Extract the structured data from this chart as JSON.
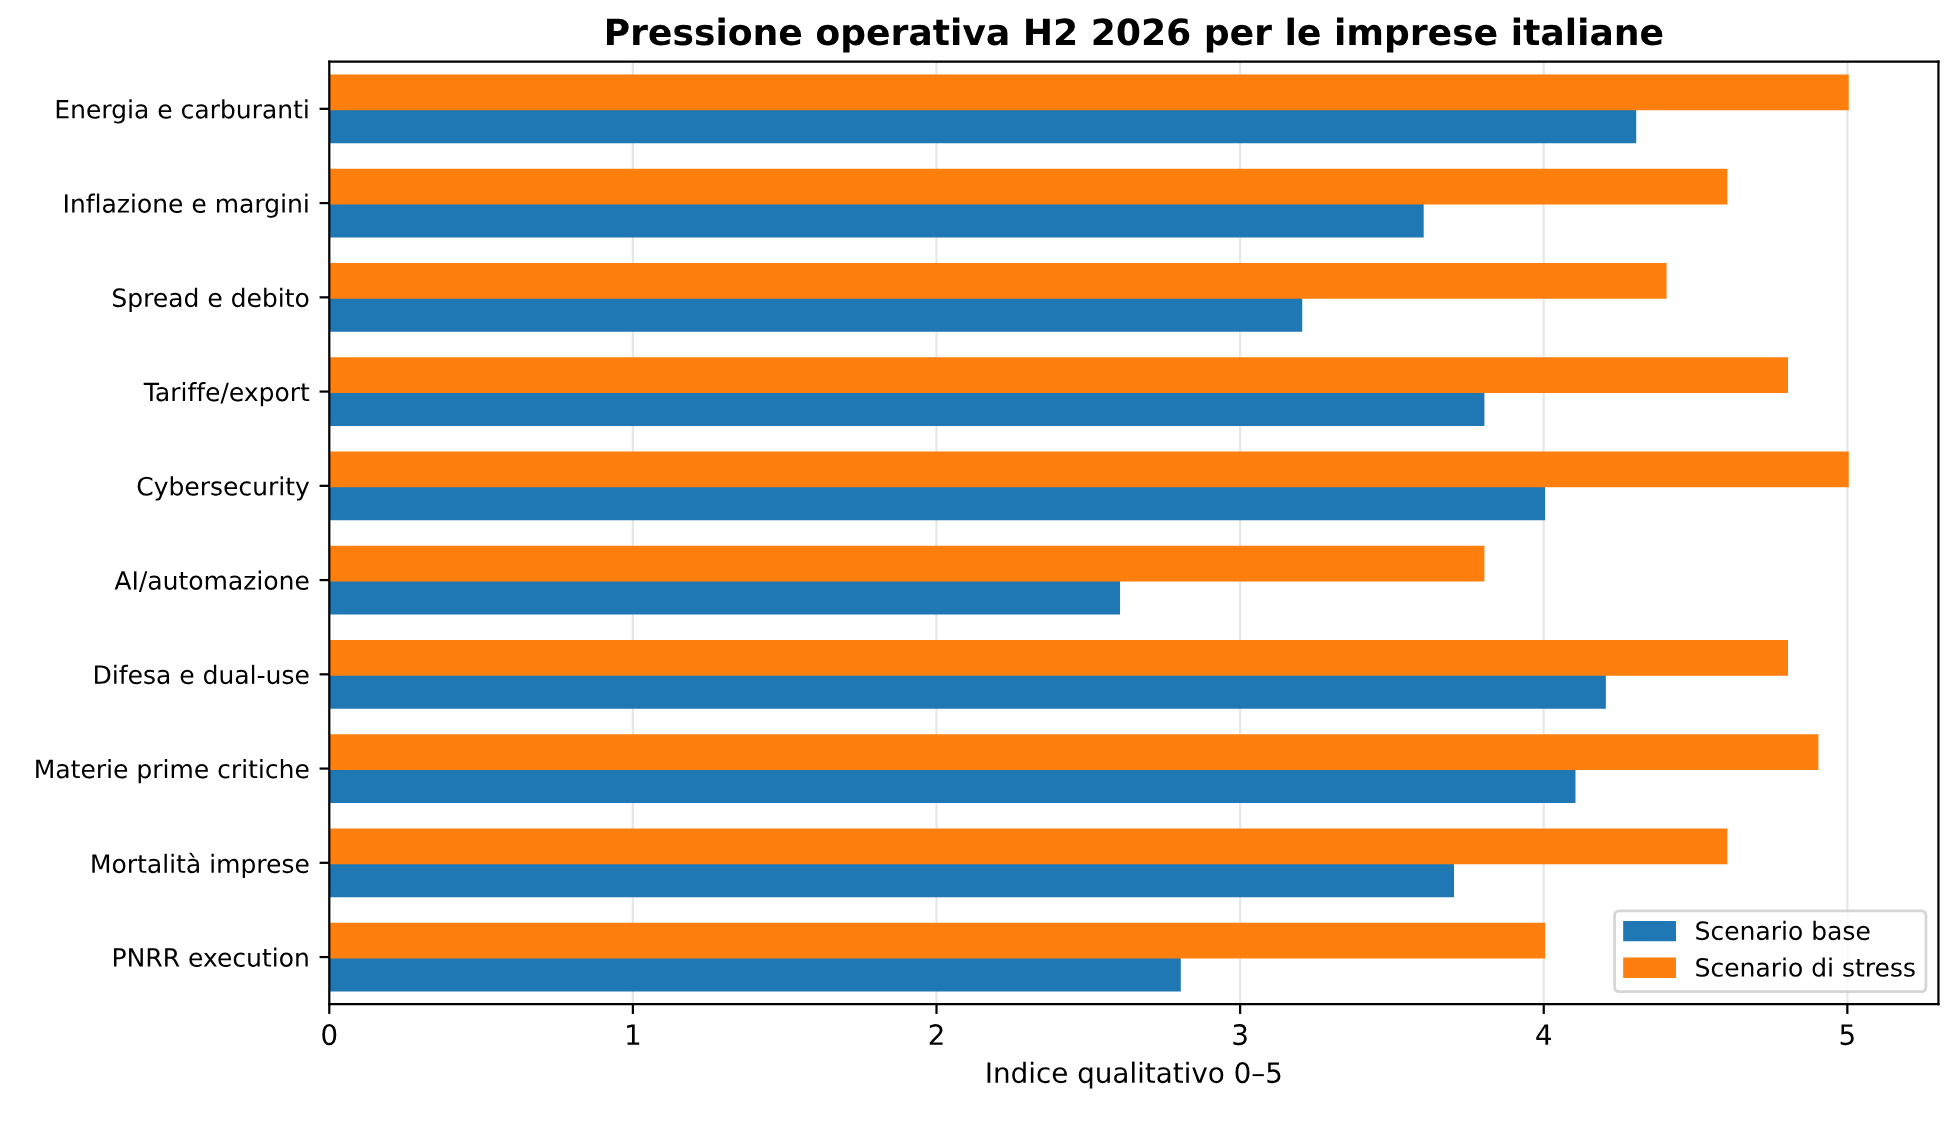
{
  "chart_data": {
    "type": "bar",
    "orientation": "horizontal",
    "title": "Pressione operativa H2 2026 per le imprese italiane",
    "xlabel": "Indice qualitativo 0–5",
    "categories": [
      "Energia e carburanti",
      "Inflazione e margini",
      "Spread e debito",
      "Tariffe/export",
      "Cybersecurity",
      "AI/automazione",
      "Difesa e dual-use",
      "Materie prime critiche",
      "Mortalità imprese",
      "PNRR execution"
    ],
    "series": [
      {
        "name": "Scenario base",
        "color": "#1f77b4",
        "values": [
          4.3,
          3.6,
          3.2,
          3.8,
          4.0,
          2.6,
          4.2,
          4.1,
          3.7,
          2.8
        ]
      },
      {
        "name": "Scenario di stress",
        "color": "#ff7f0e",
        "values": [
          5.0,
          4.6,
          4.4,
          4.8,
          5.0,
          3.8,
          4.8,
          4.9,
          4.6,
          4.0
        ]
      }
    ],
    "xlim": [
      0,
      5.3
    ],
    "xticks": [
      0,
      1,
      2,
      3,
      4,
      5
    ],
    "grid": "x",
    "legend": "bottom right"
  }
}
